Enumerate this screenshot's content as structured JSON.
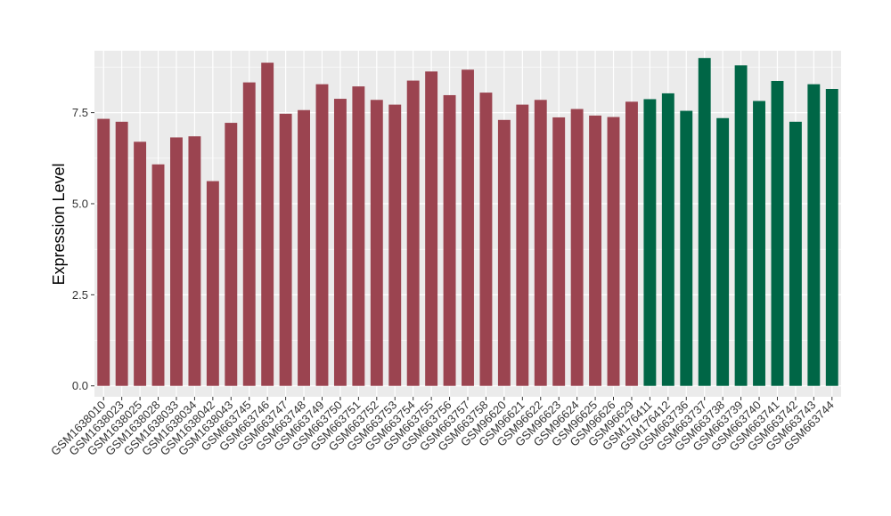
{
  "chart_data": {
    "type": "bar",
    "ylabel": "Expression Level",
    "xlabel": "",
    "ylim": [
      -0.3,
      9.2
    ],
    "yticks": [
      0.0,
      2.5,
      5.0,
      7.5
    ],
    "ytick_labels": [
      "0.0",
      "2.5",
      "5.0",
      "7.5"
    ],
    "grid": true,
    "colors": {
      "group1": "#9b4450",
      "group2": "#006646",
      "panel": "#ebebeb",
      "grid": "#ffffff"
    },
    "categories": [
      "GSM1638010",
      "GSM1638023",
      "GSM1638025",
      "GSM1638028",
      "GSM1638033",
      "GSM1638034",
      "GSM1638042",
      "GSM1638043",
      "GSM663745",
      "GSM663746",
      "GSM663747",
      "GSM663748",
      "GSM663749",
      "GSM663750",
      "GSM663751",
      "GSM663752",
      "GSM663753",
      "GSM663754",
      "GSM663755",
      "GSM663756",
      "GSM663757",
      "GSM663758",
      "GSM96620",
      "GSM96621",
      "GSM96622",
      "GSM96623",
      "GSM96624",
      "GSM96625",
      "GSM96626",
      "GSM96629",
      "GSM176411",
      "GSM176412",
      "GSM663736",
      "GSM663737",
      "GSM663738",
      "GSM663739",
      "GSM663740",
      "GSM663741",
      "GSM663742",
      "GSM663743",
      "GSM663744"
    ],
    "values": [
      7.33,
      7.25,
      6.7,
      6.08,
      6.82,
      6.85,
      5.62,
      7.22,
      8.33,
      8.87,
      7.47,
      7.57,
      8.28,
      7.88,
      8.22,
      7.85,
      7.72,
      8.38,
      8.63,
      7.98,
      8.68,
      8.05,
      7.3,
      7.72,
      7.85,
      7.37,
      7.6,
      7.42,
      7.38,
      7.8,
      7.87,
      8.03,
      7.55,
      9.0,
      7.35,
      8.8,
      7.82,
      8.37,
      7.25,
      8.28,
      8.15
    ],
    "groups": [
      1,
      1,
      1,
      1,
      1,
      1,
      1,
      1,
      1,
      1,
      1,
      1,
      1,
      1,
      1,
      1,
      1,
      1,
      1,
      1,
      1,
      1,
      1,
      1,
      1,
      1,
      1,
      1,
      1,
      1,
      2,
      2,
      2,
      2,
      2,
      2,
      2,
      2,
      2,
      2,
      2
    ]
  }
}
